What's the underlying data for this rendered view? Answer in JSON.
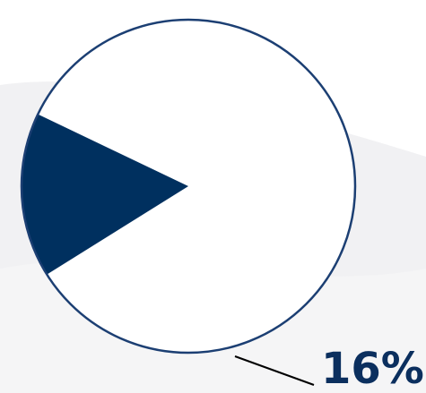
{
  "chart_data": {
    "type": "pie",
    "slices": [
      {
        "value": 84,
        "color": "#ffffff"
      },
      {
        "value": 16,
        "color": "#00305f",
        "label": "16%"
      }
    ],
    "highlight_start_angle_deg": 148,
    "outline_color": "#1c3f73",
    "label_color": "#0b2f5e"
  }
}
